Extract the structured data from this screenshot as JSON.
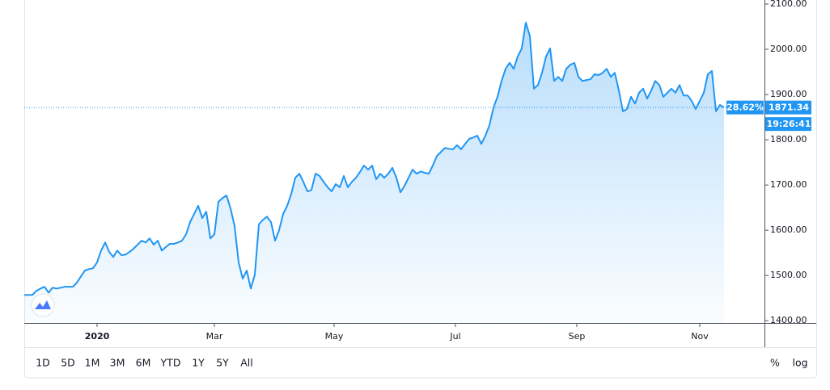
{
  "chart_data": {
    "type": "area",
    "color": "#2196f3",
    "values": [
      1457,
      1457,
      1457,
      1466,
      1471,
      1475,
      1462,
      1473,
      1471,
      1473,
      1475,
      1475,
      1475,
      1484,
      1498,
      1511,
      1514,
      1516,
      1529,
      1555,
      1573,
      1552,
      1541,
      1555,
      1545,
      1546,
      1552,
      1559,
      1568,
      1577,
      1573,
      1582,
      1568,
      1577,
      1555,
      1563,
      1570,
      1570,
      1573,
      1577,
      1591,
      1618,
      1636,
      1654,
      1627,
      1641,
      1582,
      1591,
      1663,
      1671,
      1677,
      1648,
      1609,
      1529,
      1493,
      1511,
      1471,
      1502,
      1613,
      1623,
      1630,
      1618,
      1577,
      1600,
      1636,
      1654,
      1680,
      1716,
      1725,
      1707,
      1686,
      1689,
      1725,
      1720,
      1707,
      1695,
      1686,
      1702,
      1695,
      1720,
      1695,
      1707,
      1716,
      1729,
      1743,
      1734,
      1743,
      1713,
      1725,
      1716,
      1725,
      1738,
      1716,
      1684,
      1698,
      1716,
      1734,
      1725,
      1730,
      1727,
      1725,
      1743,
      1764,
      1773,
      1782,
      1780,
      1779,
      1788,
      1779,
      1791,
      1802,
      1805,
      1809,
      1791,
      1809,
      1832,
      1871,
      1895,
      1930,
      1957,
      1970,
      1957,
      1984,
      2002,
      2059,
      2029,
      1913,
      1921,
      1948,
      1984,
      2002,
      1930,
      1939,
      1930,
      1957,
      1966,
      1970,
      1939,
      1930,
      1932,
      1934,
      1945,
      1943,
      1948,
      1957,
      1939,
      1948,
      1909,
      1863,
      1868,
      1895,
      1880,
      1904,
      1913,
      1891,
      1909,
      1930,
      1921,
      1895,
      1904,
      1913,
      1904,
      1921,
      1898,
      1898,
      1886,
      1868,
      1886,
      1904,
      1945,
      1952,
      1863,
      1877,
      1871.34
    ],
    "xlim": [
      0,
      183
    ],
    "xticks": [
      {
        "value": 18,
        "label": "2020"
      },
      {
        "value": 47,
        "label": "Mar"
      },
      {
        "value": 76.6,
        "label": "May"
      },
      {
        "value": 106.6,
        "label": "Jul"
      },
      {
        "value": 136.6,
        "label": "Sep"
      },
      {
        "value": 167,
        "label": "Nov"
      }
    ],
    "ylim": [
      1395,
      2109
    ],
    "yticks": [
      {
        "value": 1400,
        "label": "1400.00"
      },
      {
        "value": 1500,
        "label": "1500.00"
      },
      {
        "value": 1600,
        "label": "1600.00"
      },
      {
        "value": 1700,
        "label": "1700.00"
      },
      {
        "value": 1800,
        "label": "1800.00"
      },
      {
        "value": 1900,
        "label": "1900.00"
      },
      {
        "value": 2000,
        "label": "2000.00"
      },
      {
        "value": 2100,
        "label": "2100.00"
      }
    ],
    "grid": false,
    "log_scale": false,
    "last_price": {
      "value": 1871.34,
      "label": "1871.34"
    },
    "change_label": "28.62%",
    "time_label": "19:26:41"
  },
  "toolbar": {
    "ranges": [
      "1D",
      "5D",
      "1M",
      "3M",
      "6M",
      "YTD",
      "1Y",
      "5Y",
      "All"
    ],
    "scales": [
      "%",
      "log"
    ]
  }
}
